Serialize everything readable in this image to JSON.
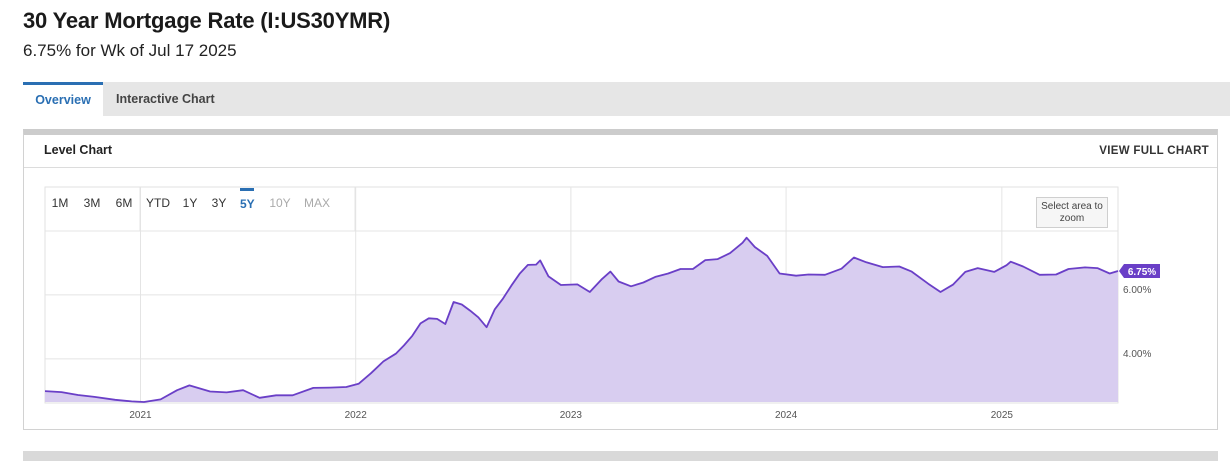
{
  "header": {
    "title": "30 Year Mortgage Rate (I:US30YMR)",
    "subtitle": "6.75% for Wk of Jul 17 2025"
  },
  "tabs": [
    {
      "label": "Overview",
      "active": true
    },
    {
      "label": "Interactive Chart",
      "active": false
    }
  ],
  "card": {
    "title": "Level Chart",
    "link_label": "VIEW FULL CHART"
  },
  "range_buttons": [
    {
      "label": "1M",
      "state": "enabled"
    },
    {
      "label": "3M",
      "state": "enabled"
    },
    {
      "label": "6M",
      "state": "enabled"
    },
    {
      "label": "YTD",
      "state": "enabled"
    },
    {
      "label": "1Y",
      "state": "enabled"
    },
    {
      "label": "3Y",
      "state": "enabled"
    },
    {
      "label": "5Y",
      "state": "active"
    },
    {
      "label": "10Y",
      "state": "disabled"
    },
    {
      "label": "MAX",
      "state": "disabled"
    }
  ],
  "zoom_hint": "Select area to zoom",
  "colors": {
    "line": "#6a3fc7",
    "fill": "#d8cdf0",
    "accent": "#2a6fb3",
    "badge": "#6a3fc7"
  },
  "chart_data": {
    "type": "area",
    "series": [
      {
        "x": [
          "2020-07-23",
          "2020-08-20",
          "2020-09-17",
          "2020-10-15",
          "2020-11-19",
          "2020-12-17",
          "2021-01-07",
          "2021-02-04",
          "2021-03-04",
          "2021-03-25",
          "2021-04-29",
          "2021-05-27",
          "2021-06-24",
          "2021-07-22",
          "2021-08-19",
          "2021-09-16",
          "2021-10-21",
          "2021-11-18",
          "2021-12-16",
          "2022-01-06",
          "2022-01-27",
          "2022-02-17",
          "2022-03-10",
          "2022-03-24",
          "2022-04-07",
          "2022-04-21",
          "2022-05-05",
          "2022-05-19",
          "2022-06-02",
          "2022-06-16",
          "2022-06-30",
          "2022-07-14",
          "2022-07-28",
          "2022-08-11",
          "2022-08-25",
          "2022-09-08",
          "2022-09-22",
          "2022-10-06",
          "2022-10-20",
          "2022-11-03",
          "2022-11-10",
          "2022-11-24",
          "2022-12-15",
          "2023-01-12",
          "2023-02-02",
          "2023-02-23",
          "2023-03-09",
          "2023-03-23",
          "2023-04-13",
          "2023-05-04",
          "2023-05-25",
          "2023-06-15",
          "2023-07-06",
          "2023-07-27",
          "2023-08-17",
          "2023-09-07",
          "2023-09-28",
          "2023-10-19",
          "2023-10-26",
          "2023-11-09",
          "2023-11-30",
          "2023-12-21",
          "2024-01-18",
          "2024-02-08",
          "2024-03-07",
          "2024-04-04",
          "2024-04-25",
          "2024-05-16",
          "2024-06-13",
          "2024-07-11",
          "2024-08-01",
          "2024-08-29",
          "2024-09-19",
          "2024-10-10",
          "2024-10-31",
          "2024-11-21",
          "2024-12-19",
          "2025-01-09",
          "2025-01-16",
          "2025-02-06",
          "2025-03-06",
          "2025-04-03",
          "2025-04-24",
          "2025-05-22",
          "2025-06-12",
          "2025-07-03",
          "2025-07-17"
        ],
        "y": [
          2.99,
          2.96,
          2.87,
          2.81,
          2.72,
          2.67,
          2.65,
          2.73,
          3.02,
          3.17,
          2.98,
          2.95,
          3.02,
          2.78,
          2.86,
          2.86,
          3.09,
          3.1,
          3.12,
          3.22,
          3.55,
          3.92,
          4.16,
          4.42,
          4.72,
          5.11,
          5.27,
          5.25,
          5.09,
          5.78,
          5.7,
          5.51,
          5.3,
          4.99,
          5.55,
          5.89,
          6.29,
          6.66,
          6.94,
          6.95,
          7.08,
          6.58,
          6.31,
          6.33,
          6.09,
          6.5,
          6.73,
          6.42,
          6.27,
          6.39,
          6.57,
          6.67,
          6.81,
          6.81,
          7.09,
          7.12,
          7.31,
          7.63,
          7.79,
          7.5,
          7.22,
          6.67,
          6.6,
          6.64,
          6.63,
          6.82,
          7.17,
          7.02,
          6.87,
          6.89,
          6.73,
          6.35,
          6.09,
          6.32,
          6.72,
          6.84,
          6.72,
          6.93,
          7.04,
          6.89,
          6.63,
          6.64,
          6.81,
          6.86,
          6.84,
          6.67,
          6.75
        ]
      }
    ],
    "x_ticks": [
      "2021",
      "2022",
      "2023",
      "2024",
      "2025"
    ],
    "y_ticks": [
      "4.00%",
      "6.00%"
    ],
    "y_range": [
      2.65,
      8.0
    ],
    "last_value_label": "6.75%",
    "grid": true
  }
}
